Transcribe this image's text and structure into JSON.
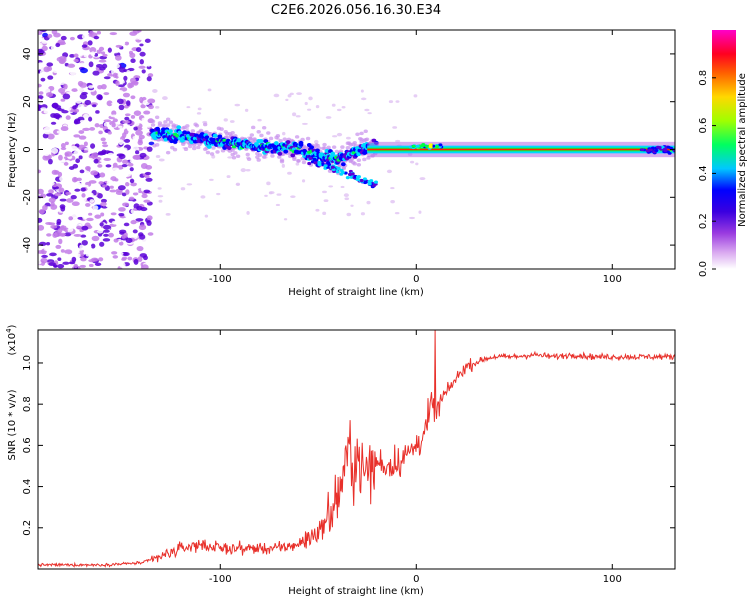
{
  "title": "C2E6.2026.056.16.30.E34",
  "chart_data": [
    {
      "type": "heatmap",
      "title": "C2E6.2026.056.16.30.E34",
      "xlabel": "Height of straight line (km)",
      "ylabel": "Frequency (Hz)",
      "xlim": [
        -193,
        132
      ],
      "ylim": [
        -50,
        50
      ],
      "x_ticks": [
        -100,
        0,
        100
      ],
      "x_tick_labels": [
        "-100",
        "0",
        "100"
      ],
      "y_ticks": [
        -40,
        -20,
        0,
        20,
        40
      ],
      "y_tick_labels": [
        "-40",
        "-20",
        "0",
        "20",
        "40"
      ],
      "colorbar": {
        "label": "Normalized spectral amplitude",
        "range": [
          0,
          1
        ],
        "ticks": [
          0.0,
          0.2,
          0.4,
          0.6,
          0.8
        ],
        "tick_labels": [
          "0.0",
          "0.2",
          "0.4",
          "0.6",
          "0.8"
        ],
        "colormap": [
          "#ffffff",
          "#c27be8",
          "#5a00d8",
          "#0000ff",
          "#00d8ff",
          "#00ff40",
          "#ffff00",
          "#ff8000",
          "#ff0000",
          "#ff00c8"
        ]
      },
      "features": {
        "noise_region_x": [
          -193,
          -135
        ],
        "signal_track": [
          {
            "x": -130,
            "y": 7
          },
          {
            "x": -100,
            "y": 3
          },
          {
            "x": -60,
            "y": 0
          },
          {
            "x": -40,
            "y": -4
          },
          {
            "x": -25,
            "y": 1
          },
          {
            "x": 0,
            "y": 0
          },
          {
            "x": 132,
            "y": 0
          }
        ],
        "lower_branch": [
          {
            "x": -55,
            "y": -4
          },
          {
            "x": -20,
            "y": -15
          }
        ]
      }
    },
    {
      "type": "line",
      "xlabel": "Height of straight line (km)",
      "ylabel": "SNR (10 * v/v)",
      "multiplier": "(x10",
      "multiplier_exp": "4",
      "multiplier_close": ")",
      "xlim": [
        -193,
        132
      ],
      "ylim": [
        0,
        1.16
      ],
      "x_ticks": [
        -100,
        0,
        100
      ],
      "x_tick_labels": [
        "-100",
        "0",
        "100"
      ],
      "y_ticks": [
        0.2,
        0.4,
        0.6,
        0.8,
        1.0
      ],
      "y_tick_labels": [
        "0.2",
        "0.4",
        "0.6",
        "0.8",
        "1.0"
      ],
      "color": "#e8302a",
      "series": [
        {
          "name": "SNR",
          "x": [
            -193,
            -180,
            -160,
            -140,
            -130,
            -120,
            -110,
            -100,
            -90,
            -80,
            -70,
            -60,
            -50,
            -45,
            -40,
            -36,
            -34,
            -32,
            -30,
            -28,
            -26,
            -24,
            -22,
            -20,
            -15,
            -10,
            -5,
            0,
            5,
            8,
            10,
            12,
            15,
            20,
            25,
            30,
            35,
            40,
            50,
            60,
            70,
            80,
            90,
            100,
            110,
            120,
            132
          ],
          "y": [
            0.02,
            0.02,
            0.02,
            0.03,
            0.06,
            0.1,
            0.12,
            0.1,
            0.1,
            0.1,
            0.1,
            0.12,
            0.18,
            0.25,
            0.35,
            0.5,
            0.6,
            0.48,
            0.55,
            0.5,
            0.45,
            0.5,
            0.48,
            0.52,
            0.5,
            0.52,
            0.55,
            0.6,
            0.68,
            0.8,
            0.75,
            0.8,
            0.85,
            0.92,
            0.98,
            1.0,
            1.02,
            1.03,
            1.03,
            1.04,
            1.03,
            1.04,
            1.03,
            1.03,
            1.03,
            1.03,
            1.03
          ]
        }
      ]
    }
  ]
}
